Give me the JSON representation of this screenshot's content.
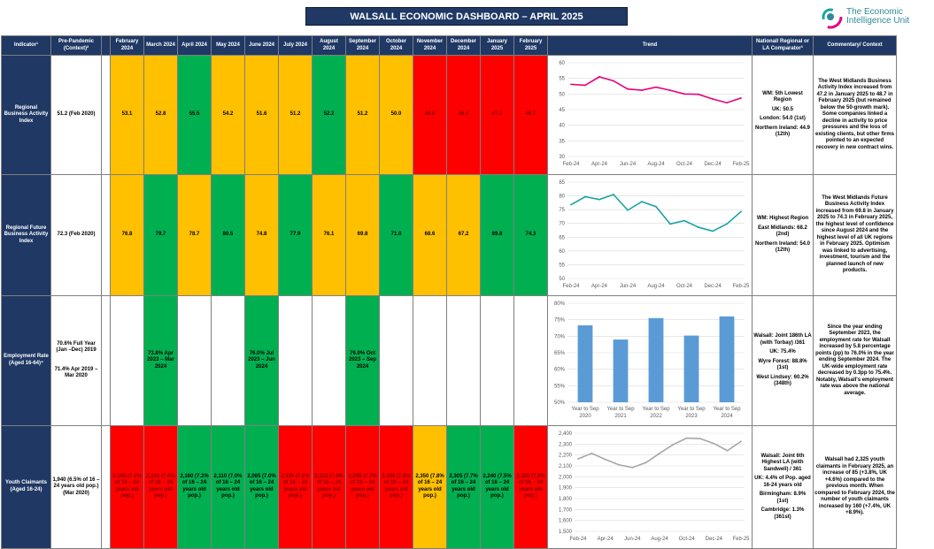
{
  "title": "WALSALL ECONOMIC DASHBOARD – APRIL 2025",
  "logo": {
    "line1": "The Economic",
    "line2": "Intelligence Unit"
  },
  "headers": {
    "indicator": "Indicator¹",
    "prepandemic": "Pre-Pandemic (Context)²",
    "months": [
      "February 2024",
      "March 2024",
      "April 2024",
      "May 2024",
      "June 2024",
      "July 2024",
      "August 2024",
      "September 2024",
      "October 2024",
      "November 2024",
      "December 2024",
      "January 2025",
      "February 2025"
    ],
    "trend": "Trend",
    "national": "National/ Regional or LA Comparator³",
    "commentary": "Commentary/ Context"
  },
  "rows": [
    {
      "indicator": "Regional Business Activity Index",
      "prepandemic": "51.2 (Feb 2020)",
      "cells": [
        {
          "v": "53.1",
          "c": "amber"
        },
        {
          "v": "52.8",
          "c": "amber"
        },
        {
          "v": "55.5",
          "c": "green"
        },
        {
          "v": "54.2",
          "c": "amber"
        },
        {
          "v": "51.6",
          "c": "amber"
        },
        {
          "v": "51.2",
          "c": "amber"
        },
        {
          "v": "52.2",
          "c": "green"
        },
        {
          "v": "51.2",
          "c": "amber"
        },
        {
          "v": "50.0",
          "c": "amber"
        },
        {
          "v": "49.9",
          "c": "red"
        },
        {
          "v": "48.4",
          "c": "red"
        },
        {
          "v": "47.2",
          "c": "red"
        },
        {
          "v": "48.7",
          "c": "red"
        }
      ],
      "national": [
        "WM: 5th Lowest Region",
        "UK: 50.5",
        "London: 54.0 (1st)",
        "Northern Ireland: 44.9 (12th)"
      ],
      "commentary": "The West Midlands Business Activity Index increased from 47.2 in January 2025 to 48.7 in February 2025 (but remained below the 50-growth mark). Some companies linked a decline in activity to price pressures and the loss of existing clients, but other firms pointed to an expected recovery in new contract wins."
    },
    {
      "indicator": "Regional Future Business Activity Index",
      "prepandemic": "72.3 (Feb 2020)",
      "cells": [
        {
          "v": "76.8",
          "c": "amber"
        },
        {
          "v": "79.7",
          "c": "green"
        },
        {
          "v": "78.7",
          "c": "amber"
        },
        {
          "v": "80.5",
          "c": "green"
        },
        {
          "v": "74.8",
          "c": "amber"
        },
        {
          "v": "77.9",
          "c": "green"
        },
        {
          "v": "76.1",
          "c": "amber"
        },
        {
          "v": "69.8",
          "c": "amber"
        },
        {
          "v": "71.0",
          "c": "green"
        },
        {
          "v": "68.6",
          "c": "amber"
        },
        {
          "v": "67.2",
          "c": "amber"
        },
        {
          "v": "69.8",
          "c": "green"
        },
        {
          "v": "74.3",
          "c": "green"
        }
      ],
      "national": [
        "WM: Highest Region",
        "East Midlands: 68.2 (2nd)",
        "Northern Ireland: 54.0 (12th)"
      ],
      "commentary": "The West Midlands Future Business Activity Index increased from 69.8 in January 2025 to 74.3 in February 2025, the highest level of confidence since August 2024 and the highest level of all UK regions in February 2025. Optimism was linked to advertising, investment, tourism and the planned launch of new products."
    },
    {
      "indicator": "Employment Rate (Aged 16-64)⁴",
      "prepandemic_a": "70.6% Full Year (Jan –Dec) 2019",
      "prepandemic_b": "71.4% Apr 2019 – Mar 2020",
      "cells": [
        {
          "v": "",
          "c": "white"
        },
        {
          "v": "73.8% Apr 2023 – Mar 2024",
          "c": "green"
        },
        {
          "v": "",
          "c": "white"
        },
        {
          "v": "",
          "c": "white"
        },
        {
          "v": "76.0% Jul 2023 – Jun 2024",
          "c": "green"
        },
        {
          "v": "",
          "c": "white"
        },
        {
          "v": "",
          "c": "white"
        },
        {
          "v": "76.0% Oct 2023 – Sep 2024",
          "c": "green"
        },
        {
          "v": "",
          "c": "white"
        },
        {
          "v": "",
          "c": "white"
        },
        {
          "v": "",
          "c": "white"
        },
        {
          "v": "",
          "c": "white"
        },
        {
          "v": "",
          "c": "white"
        }
      ],
      "national": [
        "Walsall: Joint 186th LA (with Torbay) /361",
        "UK: 75.4%",
        "Wyre Forest: 88.8% (1st)",
        "West Lindsey: 60.2% (348th)"
      ],
      "commentary": "Since the year ending September 2023, the employment rate for Walsall increased by 5.8 percentage points (pp) to 76.0% in the year ending September 2024. The UK-wide employment rate decreased by 0.3pp to 75.4%. Notably, Walsall's employment rate was above the national average."
    },
    {
      "indicator": "Youth Claimants (Aged 16-24)",
      "prepandemic": "1,940 (6.5% of 16 – 24 years old pop.) (Mar 2020)",
      "cells": [
        {
          "v": "2,165 (7.2% of 16 – 24 years old pop.)",
          "c": "red"
        },
        {
          "v": "2,215 (7.4% of 16 – 24 years old pop.)",
          "c": "red"
        },
        {
          "v": "2,160 (7.2% of 16 – 24 years old pop.)",
          "c": "green"
        },
        {
          "v": "2,110 (7.0% of 16 – 24 years old pop.)",
          "c": "green"
        },
        {
          "v": "2,085 (7.0% of 16 – 24 years old pop.)",
          "c": "green"
        },
        {
          "v": "2,130 (7.1% of 16 – 24 years old pop.)",
          "c": "red"
        },
        {
          "v": "2,215 (7.4% of 16 – 24 years old pop.)",
          "c": "red"
        },
        {
          "v": "2,295 (7.7% of 16 – 24 years old pop.)",
          "c": "red"
        },
        {
          "v": "2,355 (7.8% of 16 – 24 years old pop.)",
          "c": "red"
        },
        {
          "v": "2,350 (7.8% of 16 – 24 years old pop.)",
          "c": "amber"
        },
        {
          "v": "2,305 (7.7% of 16 – 24 years old pop.)",
          "c": "green"
        },
        {
          "v": "2,240 (7.5% of 16 – 24 years old pop.)",
          "c": "green"
        },
        {
          "v": "2,325 (7.8% of 16 – 24 years old pop.)",
          "c": "red"
        }
      ],
      "national": [
        "Walsall: Joint 6th Highest LA (with Sandwell) / 361",
        "UK: 4.4% of Pop. aged 16-24 years old",
        "Birmingham: 8.9% (1st)",
        "Cambridge: 1.3% (361st)"
      ],
      "commentary": "Walsall had 2,325 youth claimants in February 2025, an increase of 85 (+3.8%, UK +4.6%) compared to the previous month. When compared to February 2024, the number of youth claimants increased by 160 (+7.4%, UK +8.9%)."
    }
  ],
  "colors": {
    "amber": "#ffc000",
    "green": "#00b050",
    "red": "#ff0000",
    "navy": "#1f3864",
    "pink": "#e6007e",
    "teal": "#1aa3a3",
    "bar": "#5b9bd5",
    "grey": "#a6a6a6"
  },
  "chart_data": [
    {
      "type": "line",
      "x": [
        "Feb-24",
        "Mar-24",
        "Apr-24",
        "May-24",
        "Jun-24",
        "Jul-24",
        "Aug-24",
        "Sep-24",
        "Oct-24",
        "Nov-24",
        "Dec-24",
        "Jan-25",
        "Feb-25"
      ],
      "xticks": [
        "Feb-24",
        "Apr-24",
        "Jun-24",
        "Aug-24",
        "Oct-24",
        "Dec-24",
        "Feb-25"
      ],
      "values": [
        53.1,
        52.8,
        55.5,
        54.2,
        51.6,
        51.2,
        52.2,
        51.2,
        50.0,
        49.9,
        48.4,
        47.2,
        48.7
      ],
      "ylim": [
        30,
        60
      ],
      "yticks": [
        30,
        35,
        40,
        45,
        50,
        55,
        60
      ],
      "color": "#e6007e"
    },
    {
      "type": "line",
      "x": [
        "Feb-24",
        "Mar-24",
        "Apr-24",
        "May-24",
        "Jun-24",
        "Jul-24",
        "Aug-24",
        "Sep-24",
        "Oct-24",
        "Nov-24",
        "Dec-24",
        "Jan-25",
        "Feb-25"
      ],
      "xticks": [
        "Feb-24",
        "Apr-24",
        "Jun-24",
        "Aug-24",
        "Oct-24",
        "Dec-24",
        "Feb-25"
      ],
      "values": [
        76.8,
        79.7,
        78.7,
        80.5,
        74.8,
        77.9,
        76.1,
        69.8,
        71.0,
        68.6,
        67.2,
        69.8,
        74.3
      ],
      "ylim": [
        50,
        85
      ],
      "yticks": [
        50,
        55,
        60,
        65,
        70,
        75,
        80,
        85
      ],
      "color": "#1aa3a3"
    },
    {
      "type": "bar",
      "categories": [
        "Year to Sep 2020",
        "Year to Sep 2021",
        "Year to Sep 2022",
        "Year to Sep 2023",
        "Year to Sep 2024"
      ],
      "values": [
        73.3,
        69.0,
        75.5,
        70.2,
        76.0
      ],
      "ylim": [
        50,
        80
      ],
      "yticks": [
        "50%",
        "55%",
        "60%",
        "65%",
        "70%",
        "75%",
        "80%"
      ],
      "color": "#5b9bd5"
    },
    {
      "type": "line",
      "x": [
        "Feb-24",
        "Mar-24",
        "Apr-24",
        "May-24",
        "Jun-24",
        "Jul-24",
        "Aug-24",
        "Sep-24",
        "Oct-24",
        "Nov-24",
        "Dec-24",
        "Jan-25",
        "Feb-25"
      ],
      "xticks": [
        "Feb-24",
        "Apr-24",
        "Jun-24",
        "Aug-24",
        "Oct-24",
        "Dec-24",
        "Feb-25"
      ],
      "values": [
        2165,
        2215,
        2160,
        2110,
        2085,
        2130,
        2215,
        2295,
        2355,
        2350,
        2305,
        2240,
        2325
      ],
      "ylim": [
        1500,
        2400
      ],
      "yticks": [
        "1,500",
        "1,600",
        "1,700",
        "1,800",
        "1,900",
        "2,000",
        "2,100",
        "2,200",
        "2,300",
        "2,400"
      ],
      "color": "#a6a6a6"
    }
  ]
}
